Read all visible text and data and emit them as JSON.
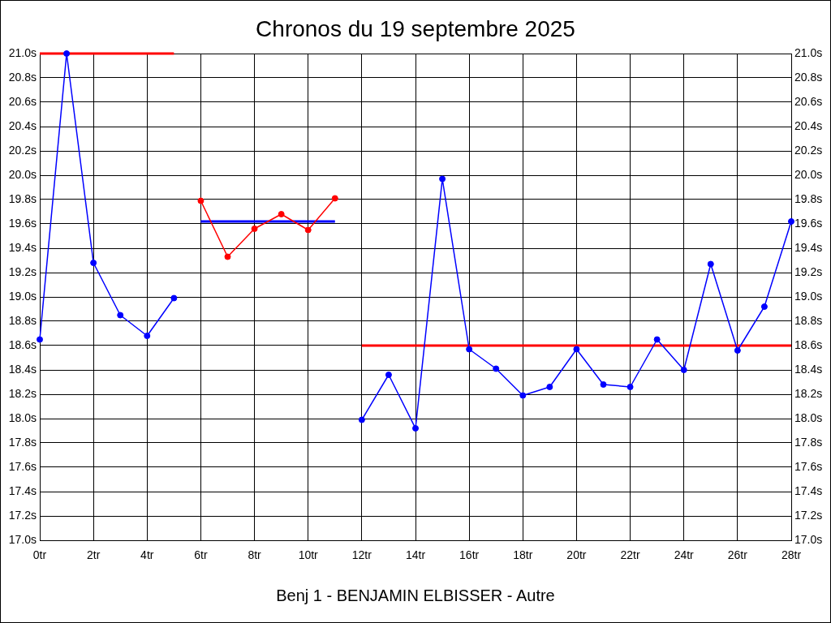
{
  "chart_data": {
    "type": "line",
    "title": "Chronos du 19 septembre 2025",
    "xlabel": "Benj 1 - BENJAMIN ELBISSER - Autre",
    "xlim": [
      0,
      28
    ],
    "xticks": [
      {
        "value": 0,
        "label": "0tr"
      },
      {
        "value": 2,
        "label": "2tr"
      },
      {
        "value": 4,
        "label": "4tr"
      },
      {
        "value": 6,
        "label": "6tr"
      },
      {
        "value": 8,
        "label": "8tr"
      },
      {
        "value": 10,
        "label": "10tr"
      },
      {
        "value": 12,
        "label": "12tr"
      },
      {
        "value": 14,
        "label": "14tr"
      },
      {
        "value": 16,
        "label": "16tr"
      },
      {
        "value": 18,
        "label": "18tr"
      },
      {
        "value": 20,
        "label": "20tr"
      },
      {
        "value": 22,
        "label": "22tr"
      },
      {
        "value": 24,
        "label": "24tr"
      },
      {
        "value": 26,
        "label": "26tr"
      },
      {
        "value": 28,
        "label": "28tr"
      }
    ],
    "ylim": [
      17,
      21
    ],
    "yticks": [
      {
        "value": 17,
        "label": "17.0s"
      },
      {
        "value": 17.2,
        "label": "17.2s"
      },
      {
        "value": 17.4,
        "label": "17.4s"
      },
      {
        "value": 17.6,
        "label": "17.6s"
      },
      {
        "value": 17.8,
        "label": "17.8s"
      },
      {
        "value": 18,
        "label": "18.0s"
      },
      {
        "value": 18.2,
        "label": "18.2s"
      },
      {
        "value": 18.4,
        "label": "18.4s"
      },
      {
        "value": 18.6,
        "label": "18.6s"
      },
      {
        "value": 18.8,
        "label": "18.8s"
      },
      {
        "value": 19,
        "label": "19.0s"
      },
      {
        "value": 19.2,
        "label": "19.2s"
      },
      {
        "value": 19.4,
        "label": "19.4s"
      },
      {
        "value": 19.6,
        "label": "19.6s"
      },
      {
        "value": 19.8,
        "label": "19.8s"
      },
      {
        "value": 20,
        "label": "20.0s"
      },
      {
        "value": 20.2,
        "label": "20.2s"
      },
      {
        "value": 20.4,
        "label": "20.4s"
      },
      {
        "value": 20.6,
        "label": "20.6s"
      },
      {
        "value": 20.8,
        "label": "20.8s"
      },
      {
        "value": 21,
        "label": "21.0s"
      }
    ],
    "y2lim": [
      17,
      21
    ],
    "y2ticks": [
      {
        "value": 17,
        "label": "17.0s"
      },
      {
        "value": 17.2,
        "label": "17.2s"
      },
      {
        "value": 17.4,
        "label": "17.4s"
      },
      {
        "value": 17.6,
        "label": "17.6s"
      },
      {
        "value": 17.8,
        "label": "17.8s"
      },
      {
        "value": 18,
        "label": "18.0s"
      },
      {
        "value": 18.2,
        "label": "18.2s"
      },
      {
        "value": 18.4,
        "label": "18.4s"
      },
      {
        "value": 18.6,
        "label": "18.6s"
      },
      {
        "value": 18.8,
        "label": "18.8s"
      },
      {
        "value": 19,
        "label": "19.0s"
      },
      {
        "value": 19.2,
        "label": "19.2s"
      },
      {
        "value": 19.4,
        "label": "19.4s"
      },
      {
        "value": 19.6,
        "label": "19.6s"
      },
      {
        "value": 19.8,
        "label": "19.8s"
      },
      {
        "value": 20,
        "label": "20.0s"
      },
      {
        "value": 20.2,
        "label": "20.2s"
      },
      {
        "value": 20.4,
        "label": "20.4s"
      },
      {
        "value": 20.6,
        "label": "20.6s"
      },
      {
        "value": 20.8,
        "label": "20.8s"
      },
      {
        "value": 21,
        "label": "21.0s"
      }
    ],
    "series": [
      {
        "color": "#0000ff",
        "x": [
          0,
          1,
          2,
          3,
          4,
          5
        ],
        "values": [
          18.65,
          21.0,
          19.28,
          18.85,
          18.68,
          18.99
        ]
      },
      {
        "color": "#ff0000",
        "x": [
          6,
          7,
          8,
          9,
          10,
          11
        ],
        "values": [
          19.79,
          19.33,
          19.56,
          19.68,
          19.55,
          19.81
        ]
      },
      {
        "color": "#0000ff",
        "x": [
          12,
          13,
          14,
          15,
          16,
          17,
          18,
          19,
          20,
          21,
          22,
          23,
          24,
          25,
          26,
          27,
          28
        ],
        "values": [
          17.99,
          18.36,
          17.92,
          19.97,
          18.57,
          18.41,
          18.19,
          18.26,
          18.57,
          18.28,
          18.26,
          18.65,
          18.4,
          19.27,
          18.56,
          18.92,
          19.62
        ]
      },
      {
        "color": "#ff0000",
        "x": [
          0,
          5
        ],
        "values": [
          21.0,
          21.0
        ],
        "marker": "none"
      },
      {
        "color": "#0000ff",
        "x": [
          6,
          11
        ],
        "values": [
          19.62,
          19.62
        ],
        "marker": "none"
      },
      {
        "color": "#ff0000",
        "x": [
          12,
          28
        ],
        "values": [
          18.6,
          18.6
        ],
        "marker": "none"
      }
    ],
    "marker": "circle",
    "grid": true,
    "legend": false
  }
}
